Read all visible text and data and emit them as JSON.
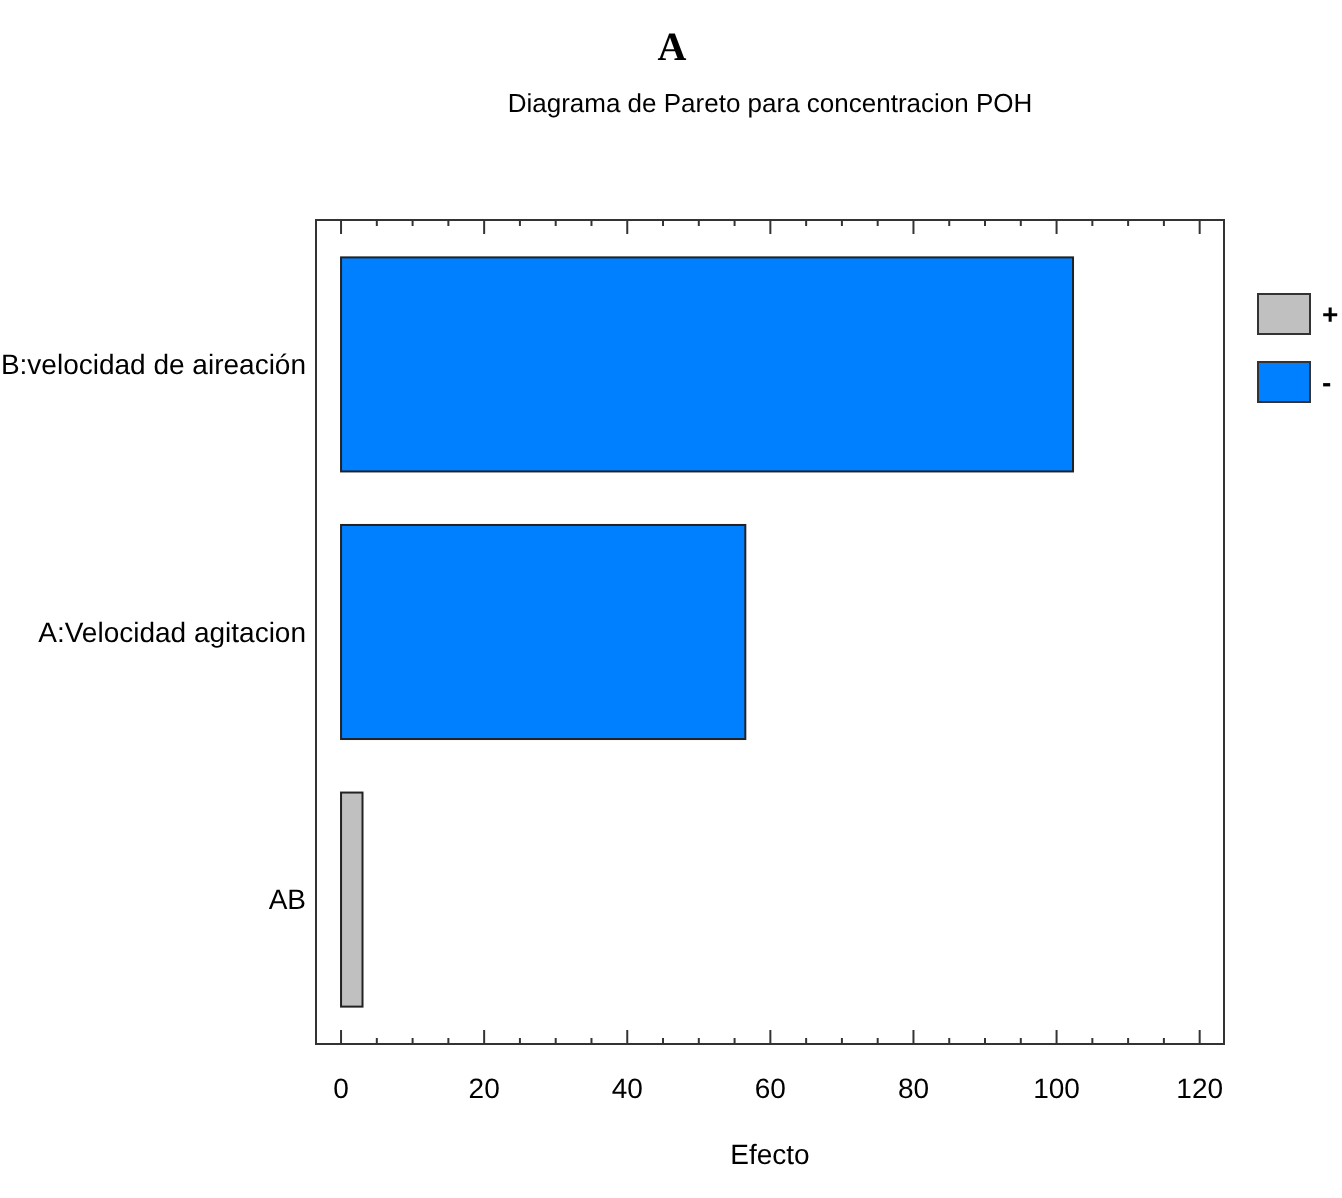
{
  "chart_data": {
    "type": "bar",
    "orientation": "horizontal",
    "title": "A",
    "subtitle": "Diagrama de Pareto para concentracion POH",
    "xlabel": "Efecto",
    "categories": [
      "B:velocidad de aireación",
      "A:Velocidad agitacion",
      "AB"
    ],
    "series": [
      {
        "name": "+",
        "color": "#c0c0c0",
        "values": [
          null,
          null,
          3
        ]
      },
      {
        "name": "-",
        "color": "#0080ff",
        "values": [
          102.3,
          56.5,
          null
        ]
      }
    ],
    "xlim": [
      -3.5,
      123.4
    ],
    "xticks": [
      0,
      {
        "value": 5,
        "label": null
      },
      {
        "value": 10,
        "label": null
      },
      {
        "value": 15,
        "label": null
      },
      20,
      {
        "value": 25,
        "label": null
      },
      {
        "value": 30,
        "label": null
      },
      {
        "value": 35,
        "label": null
      },
      40,
      {
        "value": 45,
        "label": null
      },
      {
        "value": 50,
        "label": null
      },
      {
        "value": 55,
        "label": null
      },
      60,
      {
        "value": 65,
        "label": null
      },
      {
        "value": 70,
        "label": null
      },
      {
        "value": 75,
        "label": null
      },
      80,
      {
        "value": 85,
        "label": null
      },
      {
        "value": 90,
        "label": null
      },
      {
        "value": 95,
        "label": null
      },
      100,
      {
        "value": 105,
        "label": null
      },
      {
        "value": 110,
        "label": null
      },
      {
        "value": 115,
        "label": null
      },
      120
    ],
    "legend": "right",
    "grid": false
  }
}
